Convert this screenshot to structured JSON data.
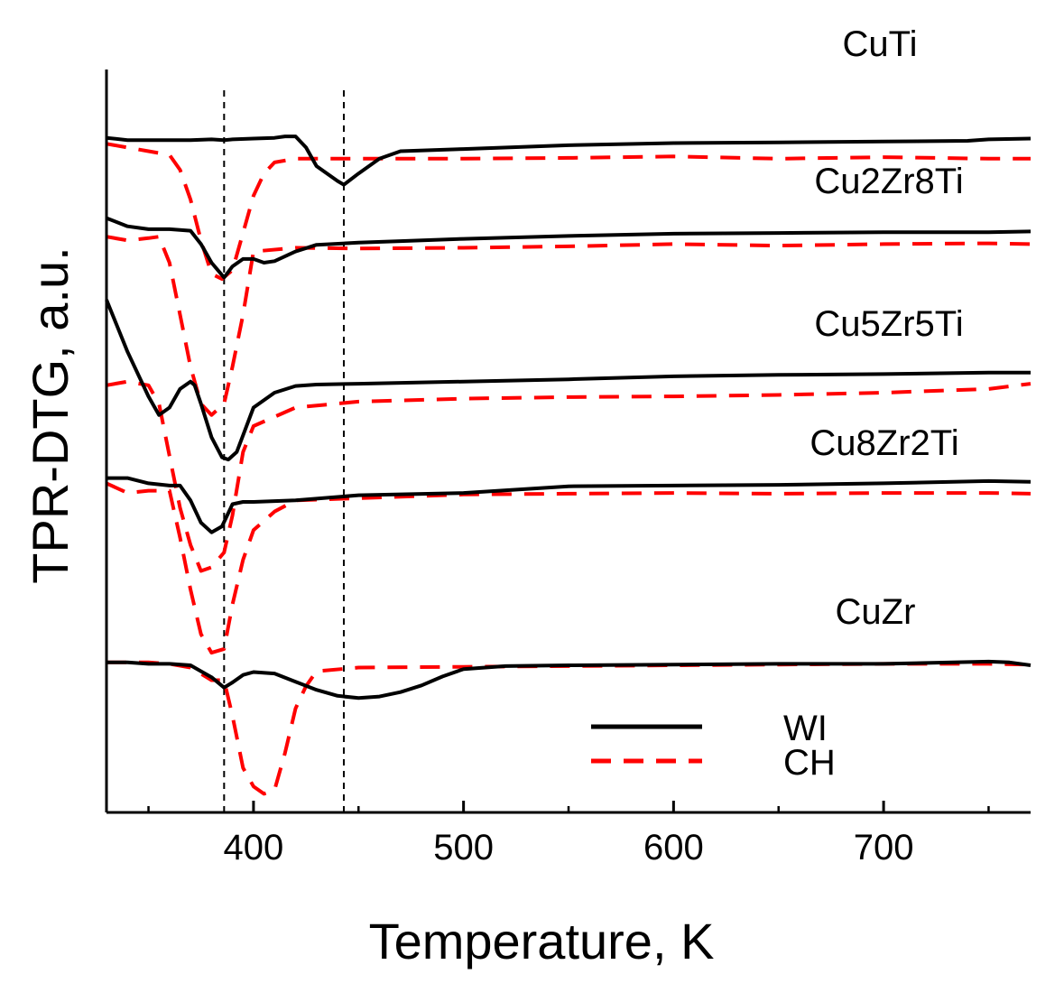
{
  "chart_data": {
    "type": "line",
    "title": "",
    "xlabel": "Temperature, K",
    "ylabel": "TPR-DTG, a.u.",
    "xlim": [
      330,
      770
    ],
    "ylim": [
      0,
      100
    ],
    "x_ticks": [
      400,
      500,
      600,
      700
    ],
    "x_tick_labels": [
      "400",
      "500",
      "600",
      "700"
    ],
    "x_minor_ticks": [
      350,
      450,
      550,
      650,
      750
    ],
    "grid": false,
    "y_tick_labels_shown": false,
    "reference_lines": [
      386,
      443
    ],
    "legend": {
      "position": "bottom-right",
      "entries": [
        {
          "label": "WI",
          "color": "#000000",
          "style": "solid"
        },
        {
          "label": "CH",
          "color": "#ff0000",
          "style": "dashed"
        }
      ]
    },
    "samples": [
      {
        "name": "CuTi",
        "WI": {
          "x": [
            330,
            340,
            350,
            360,
            370,
            380,
            386,
            390,
            400,
            410,
            415,
            420,
            425,
            430,
            440,
            443,
            450,
            460,
            470,
            500,
            550,
            600,
            650,
            700,
            740,
            750,
            770
          ],
          "y": [
            90.8,
            90.5,
            90.5,
            90.5,
            90.5,
            90.6,
            90.5,
            90.6,
            90.7,
            90.8,
            91.0,
            91.0,
            89.5,
            87.0,
            85.0,
            84.5,
            86.0,
            88.0,
            89.0,
            89.3,
            89.8,
            90.1,
            90.2,
            90.3,
            90.4,
            90.6,
            90.7
          ]
        },
        "CH": {
          "x": [
            330,
            340,
            350,
            360,
            365,
            370,
            375,
            380,
            385,
            390,
            395,
            400,
            405,
            410,
            420,
            440,
            500,
            550,
            600,
            650,
            700,
            750,
            770
          ],
          "y": [
            90.0,
            89.5,
            89.0,
            88.5,
            86.5,
            82.5,
            77.0,
            72.5,
            71.8,
            73.0,
            78.0,
            83.0,
            86.0,
            87.5,
            88.0,
            88.0,
            88.0,
            88.1,
            88.3,
            88.0,
            88.2,
            88.0,
            88.0
          ]
        }
      },
      {
        "name": "Cu2Zr8Ti",
        "WI": {
          "x": [
            330,
            340,
            350,
            360,
            370,
            375,
            380,
            386,
            390,
            395,
            400,
            405,
            410,
            420,
            430,
            450,
            470,
            500,
            550,
            600,
            650,
            700,
            750,
            770
          ],
          "y": [
            80.0,
            78.9,
            78.5,
            78.5,
            78.3,
            76.5,
            74.0,
            72.0,
            73.5,
            74.5,
            74.5,
            74.0,
            74.2,
            75.5,
            76.4,
            76.7,
            76.9,
            77.2,
            77.6,
            77.9,
            78.0,
            78.1,
            78.1,
            78.2
          ]
        },
        "CH": {
          "x": [
            330,
            340,
            350,
            355,
            360,
            365,
            370,
            375,
            380,
            386,
            390,
            395,
            400,
            420,
            450,
            500,
            550,
            600,
            650,
            700,
            750,
            770
          ],
          "y": [
            77.5,
            77.0,
            77.3,
            77.5,
            74.0,
            67.0,
            60.0,
            55.0,
            53.5,
            55.0,
            60.0,
            67.0,
            75.5,
            76.0,
            75.9,
            76.0,
            76.2,
            76.5,
            76.3,
            76.5,
            76.6,
            76.5
          ]
        }
      },
      {
        "name": "Cu5Zr5Ti",
        "WI": {
          "x": [
            330,
            340,
            350,
            355,
            360,
            365,
            370,
            372,
            375,
            380,
            385,
            388,
            392,
            396,
            400,
            410,
            420,
            430,
            450,
            500,
            550,
            600,
            650,
            700,
            750,
            770
          ],
          "y": [
            69.0,
            62.0,
            56.0,
            53.5,
            54.5,
            57.0,
            58.0,
            57.5,
            55.0,
            50.5,
            47.8,
            47.5,
            48.5,
            51.5,
            54.5,
            56.5,
            57.4,
            57.6,
            57.7,
            58.0,
            58.3,
            58.7,
            58.9,
            59.0,
            59.2,
            59.2
          ]
        },
        "CH": {
          "x": [
            330,
            340,
            350,
            355,
            360,
            365,
            370,
            375,
            380,
            386,
            390,
            395,
            400,
            420,
            450,
            500,
            550,
            600,
            650,
            700,
            750,
            770
          ],
          "y": [
            57.5,
            58.0,
            57.5,
            55.0,
            48.0,
            41.0,
            36.0,
            32.5,
            33.0,
            35.0,
            40.0,
            48.5,
            52.0,
            54.5,
            55.3,
            55.7,
            55.9,
            56.0,
            56.2,
            56.5,
            57.0,
            57.7
          ]
        }
      },
      {
        "name": "Cu8Zr2Ti",
        "WI": {
          "x": [
            330,
            340,
            350,
            360,
            365,
            370,
            375,
            380,
            385,
            390,
            395,
            400,
            420,
            450,
            500,
            550,
            600,
            650,
            700,
            750,
            770
          ],
          "y": [
            45.0,
            45.0,
            44.3,
            44.0,
            44.0,
            42.0,
            39.0,
            37.7,
            38.5,
            41.5,
            41.8,
            41.8,
            42.0,
            42.7,
            43.0,
            43.9,
            44.0,
            44.1,
            44.3,
            44.6,
            44.5
          ]
        },
        "CH": {
          "x": [
            330,
            340,
            350,
            360,
            365,
            370,
            375,
            380,
            386,
            390,
            395,
            400,
            410,
            420,
            450,
            500,
            550,
            600,
            650,
            700,
            750,
            770
          ],
          "y": [
            44.3,
            43.0,
            43.3,
            43.3,
            37.0,
            30.0,
            24.0,
            21.5,
            22.0,
            28.0,
            34.0,
            38.0,
            40.5,
            42.0,
            42.3,
            42.8,
            42.9,
            43.0,
            42.9,
            43.0,
            43.0,
            42.9
          ]
        }
      },
      {
        "name": "CuZr",
        "WI": {
          "x": [
            330,
            340,
            350,
            360,
            370,
            375,
            380,
            386,
            390,
            395,
            400,
            410,
            420,
            430,
            440,
            450,
            460,
            470,
            480,
            490,
            500,
            520,
            550,
            600,
            650,
            700,
            750,
            760,
            770
          ],
          "y": [
            20.2,
            20.2,
            20.0,
            20.0,
            19.8,
            19.0,
            18.2,
            16.8,
            17.5,
            18.5,
            18.9,
            18.7,
            17.6,
            16.5,
            15.7,
            15.4,
            15.6,
            16.2,
            17.1,
            18.3,
            19.3,
            19.7,
            19.8,
            19.9,
            20.0,
            20.0,
            20.3,
            20.2,
            19.8
          ]
        },
        "CH": {
          "x": [
            330,
            340,
            350,
            360,
            370,
            380,
            386,
            390,
            395,
            400,
            405,
            410,
            415,
            420,
            425,
            430,
            450,
            500,
            550,
            600,
            650,
            700,
            750,
            770
          ],
          "y": [
            20.2,
            20.2,
            20.2,
            20.0,
            19.5,
            17.8,
            17.8,
            13.0,
            6.0,
            3.5,
            2.5,
            3.0,
            8.0,
            14.0,
            17.0,
            19.0,
            19.5,
            19.6,
            19.7,
            19.8,
            19.9,
            20.0,
            20.0,
            19.9
          ]
        }
      }
    ]
  }
}
